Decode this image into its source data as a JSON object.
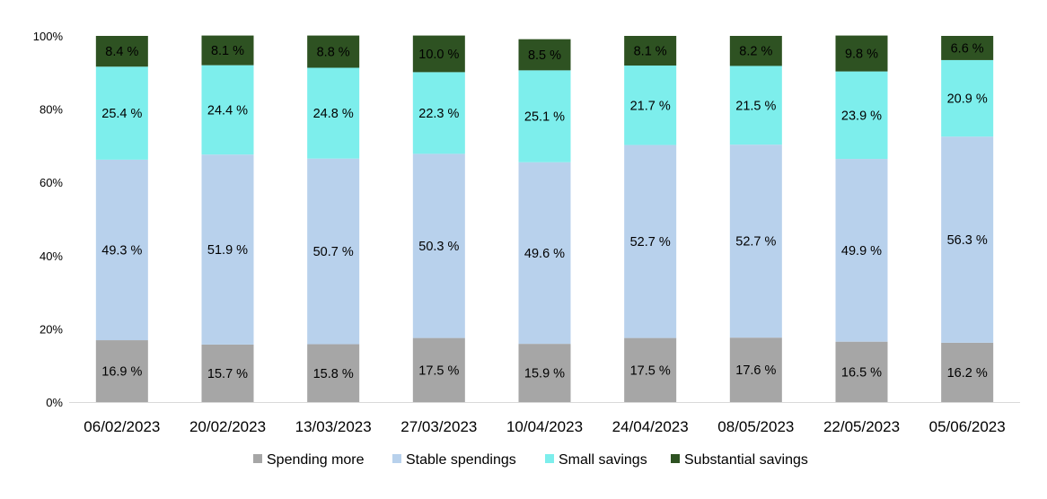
{
  "chart_data": {
    "type": "bar",
    "stacked": true,
    "title": "",
    "xlabel": "",
    "ylabel": "",
    "ylim": [
      0,
      100
    ],
    "y_ticks": [
      "0%",
      "20%",
      "40%",
      "60%",
      "80%",
      "100%"
    ],
    "grid": false,
    "legend_position": "bottom",
    "label_suffix": " %",
    "categories": [
      "06/02/2023",
      "20/02/2023",
      "13/03/2023",
      "27/03/2023",
      "10/04/2023",
      "24/04/2023",
      "08/05/2023",
      "22/05/2023",
      "05/06/2023"
    ],
    "series": [
      {
        "name": "Spending more",
        "color": "#a6a6a6",
        "values": [
          16.9,
          15.7,
          15.8,
          17.5,
          15.9,
          17.5,
          17.6,
          16.5,
          16.2
        ]
      },
      {
        "name": "Stable spendings",
        "color": "#b8d1ec",
        "values": [
          49.3,
          51.9,
          50.7,
          50.3,
          49.6,
          52.7,
          52.7,
          49.9,
          56.3
        ]
      },
      {
        "name": "Small savings",
        "color": "#7deeec",
        "values": [
          25.4,
          24.4,
          24.8,
          22.3,
          25.1,
          21.7,
          21.5,
          23.9,
          20.9
        ]
      },
      {
        "name": "Substantial savings",
        "color": "#2e5222",
        "values": [
          8.4,
          8.1,
          8.8,
          10.0,
          8.5,
          8.1,
          8.2,
          9.8,
          6.6
        ]
      }
    ]
  }
}
